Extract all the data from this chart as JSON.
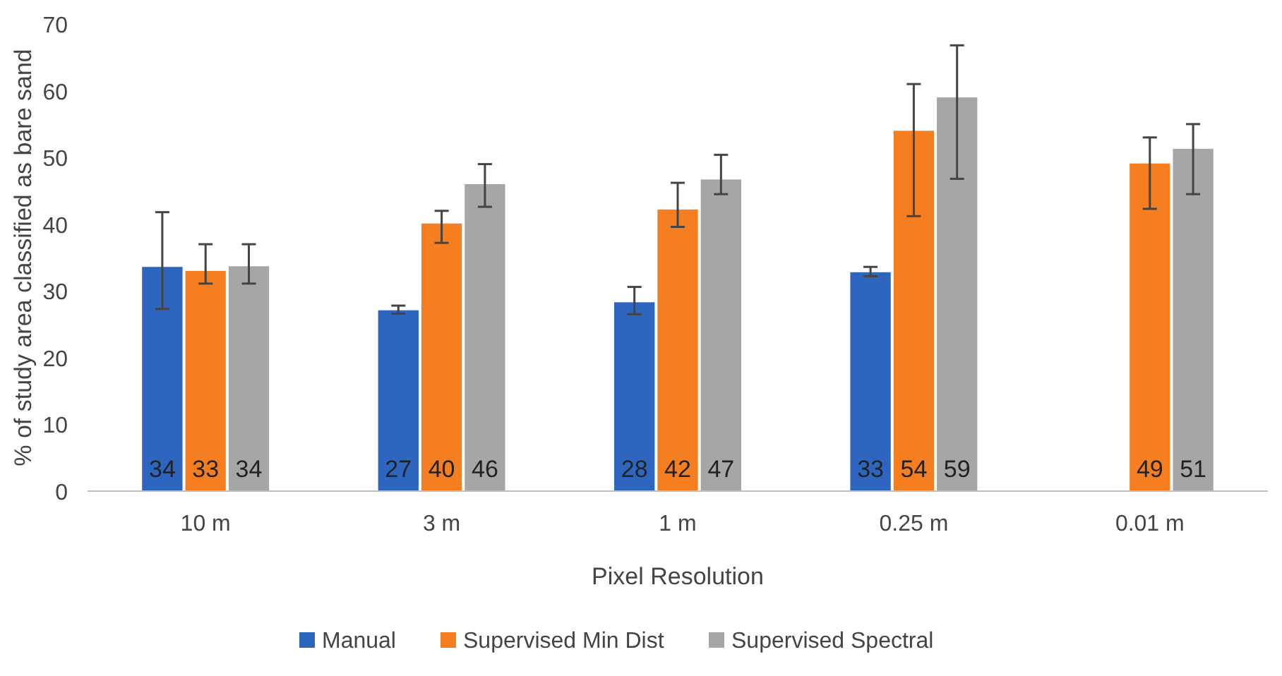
{
  "chart_data": {
    "type": "bar",
    "xlabel": "Pixel Resolution",
    "ylabel": "% of study area classified as bare sand",
    "categories": [
      "10 m",
      "3 m",
      "1 m",
      "0.25 m",
      "0.01 m"
    ],
    "ylim": [
      0,
      70
    ],
    "yticks": [
      0,
      10,
      20,
      30,
      40,
      50,
      60,
      70
    ],
    "grid": false,
    "legend": "bottom",
    "series": [
      {
        "name": "Manual",
        "color": "#2e65bf",
        "values": [
          33.6,
          27.1,
          28.3,
          32.8,
          null
        ],
        "errors": [
          [
            27.3,
            41.8
          ],
          [
            26.6,
            27.8
          ],
          [
            26.5,
            30.6
          ],
          [
            32.2,
            33.6
          ],
          null
        ],
        "value_labels": [
          "34",
          "27",
          "28",
          "33",
          null
        ]
      },
      {
        "name": "Supervised Min Dist",
        "color": "#f57f20",
        "values": [
          33.0,
          40.1,
          42.2,
          54.0,
          49.1
        ],
        "errors": [
          [
            31.1,
            37.0
          ],
          [
            37.2,
            42.0
          ],
          [
            39.6,
            46.2
          ],
          [
            41.2,
            61.0
          ],
          [
            42.3,
            53.0
          ]
        ],
        "value_labels": [
          "33",
          "40",
          "42",
          "54",
          "49"
        ]
      },
      {
        "name": "Supervised Spectral",
        "color": "#a6a6a6",
        "values": [
          33.7,
          46.0,
          46.7,
          59.0,
          51.3
        ],
        "errors": [
          [
            31.1,
            37.0
          ],
          [
            42.6,
            49.0
          ],
          [
            44.5,
            50.4
          ],
          [
            46.8,
            66.8
          ],
          [
            44.5,
            55.0
          ]
        ],
        "value_labels": [
          "34",
          "46",
          "47",
          "59",
          "51"
        ]
      }
    ]
  }
}
